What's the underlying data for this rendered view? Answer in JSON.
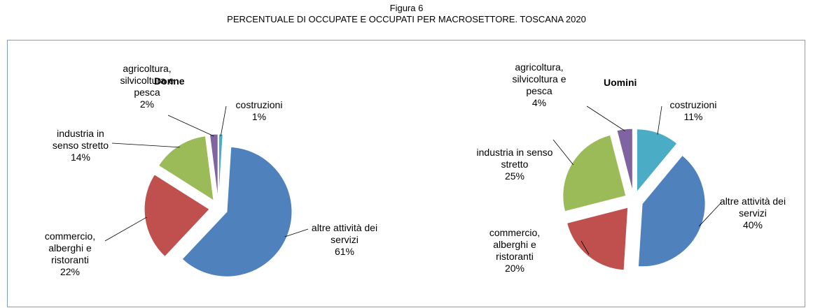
{
  "header": {
    "label": "Figura 6",
    "title": "PERCENTUALE DI OCCUPATE E OCCUPATI PER MACROSETTORE. TOSCANA 2020"
  },
  "chart_data": [
    {
      "type": "pie",
      "title": "Donne",
      "categories": [
        "costruzioni",
        "altre attività dei servizi",
        "commercio, alberghi e ristoranti",
        "industria in senso stretto",
        "agricoltura, silvicoltura e pesca"
      ],
      "values": [
        1,
        61,
        22,
        14,
        2
      ],
      "value_labels": [
        "1%",
        "61%",
        "22%",
        "14%",
        "2%"
      ],
      "colors": [
        "#4bacc6",
        "#4f81bd",
        "#c0504d",
        "#9bbb59",
        "#8064a2"
      ]
    },
    {
      "type": "pie",
      "title": "Uomini",
      "categories": [
        "costruzioni",
        "altre attività dei servizi",
        "commercio, alberghi e ristoranti",
        "industria in senso stretto",
        "agricoltura, silvicoltura e pesca"
      ],
      "values": [
        11,
        40,
        20,
        25,
        4
      ],
      "value_labels": [
        "11%",
        "40%",
        "20%",
        "25%",
        "4%"
      ],
      "colors": [
        "#4bacc6",
        "#4f81bd",
        "#c0504d",
        "#9bbb59",
        "#8064a2"
      ]
    }
  ]
}
